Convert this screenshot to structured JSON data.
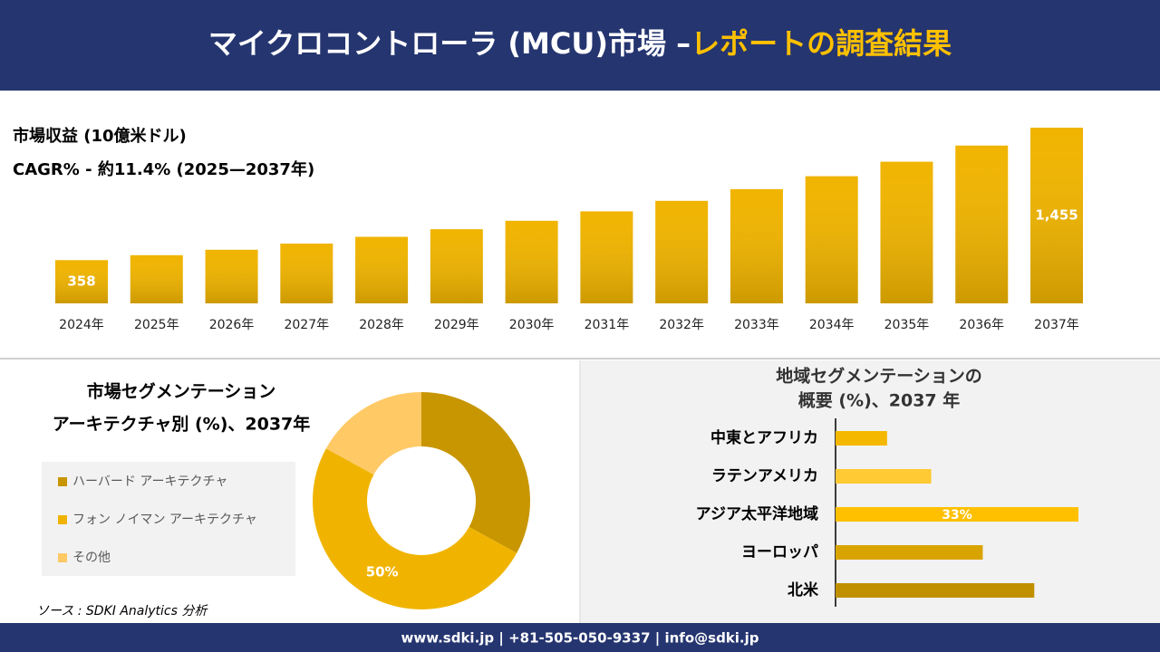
{
  "header": {
    "title_main": "マイクロコントローラ (MCU)市場 –",
    "title_highlight": "レポートの調査結果"
  },
  "chart_data": [
    {
      "type": "bar",
      "orientation": "vertical",
      "subtitles": [
        "市場収益 (10億米ドル)",
        "CAGR% - 約11.4% (2025—2037年)"
      ],
      "categories": [
        "2024年",
        "2025年",
        "2026年",
        "2027年",
        "2028年",
        "2029年",
        "2030年",
        "2031年",
        "2032年",
        "2033年",
        "2034年",
        "2035年",
        "2036年",
        "2037年"
      ],
      "values": [
        358,
        399,
        444,
        495,
        551,
        614,
        684,
        762,
        849,
        946,
        1053,
        1173,
        1307,
        1455
      ],
      "value_labels": [
        "358",
        null,
        null,
        null,
        null,
        null,
        null,
        null,
        null,
        null,
        null,
        null,
        null,
        "1,455"
      ],
      "color": "#f0b400"
    },
    {
      "type": "pie",
      "donut": true,
      "title": [
        "市場セグメンテーション",
        "アーキテクチャ別 (%)、2037年"
      ],
      "categories": [
        "ハーバード アーキテクチャ",
        "フォン ノイマン アーキテクチャ",
        "その他"
      ],
      "values": [
        33,
        50,
        17
      ],
      "value_labels": [
        null,
        "50%",
        null
      ],
      "colors": [
        "#c89600",
        "#f0b400",
        "#ffc966"
      ]
    },
    {
      "type": "bar",
      "orientation": "horizontal",
      "title": [
        "地域セグメンテーションの",
        "概要 (%)、2037 年"
      ],
      "categories": [
        "中東とアフリカ",
        "ラテンアメリカ",
        "アジア太平洋地域",
        "ヨーロッパ",
        "北米"
      ],
      "values": [
        7,
        13,
        33,
        20,
        27
      ],
      "value_labels": [
        null,
        null,
        "33%",
        null,
        null
      ],
      "colors": [
        "#f5b800",
        "#ffca33",
        "#ffc000",
        "#d9a400",
        "#c09000"
      ]
    }
  ],
  "source": "ソース : SDKI Analytics 分析",
  "footer": "www.sdki.jp | +81-505-050-9337 | info@sdki.jp"
}
